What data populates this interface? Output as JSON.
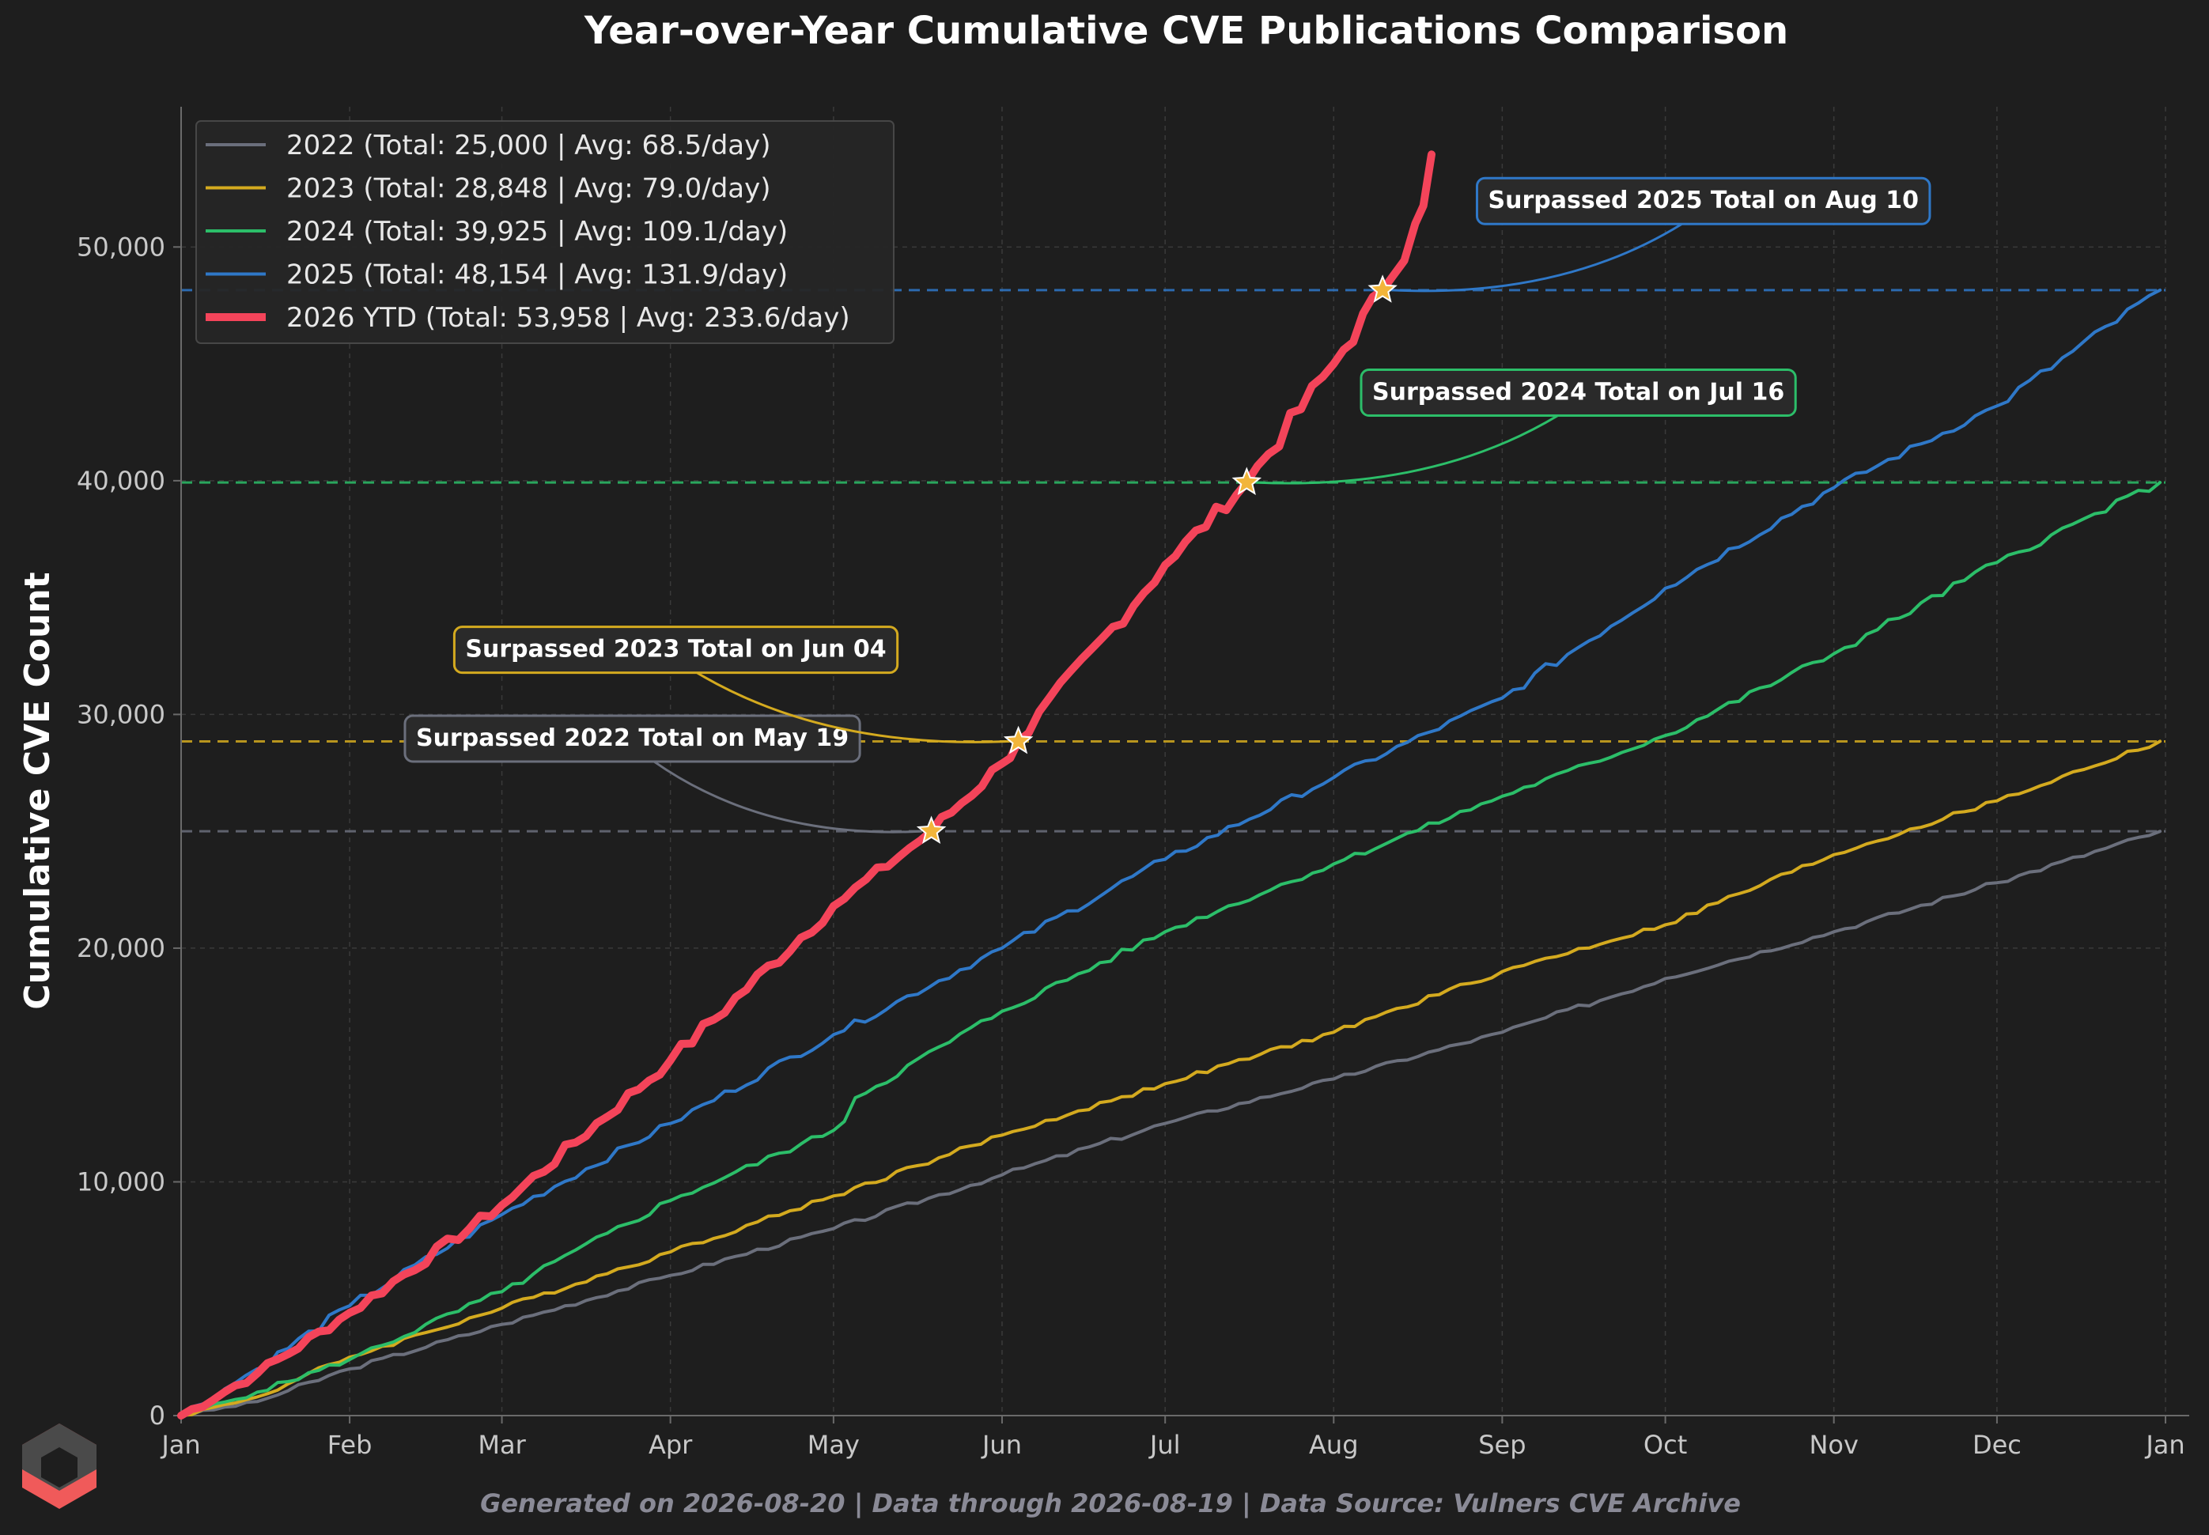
{
  "colors": {
    "background": "#1e1e1e",
    "grid": "#3a3a3a",
    "axis": "#6a6a6a",
    "y2022": "#6b6f7c",
    "y2023": "#d4aa1f",
    "y2024": "#2cbe69",
    "y2025": "#2f78c8",
    "y2026": "#f4445a",
    "star": "#f2b53a"
  },
  "chart_data": {
    "type": "line",
    "title": "Year-over-Year Cumulative CVE Publications Comparison",
    "xlabel": "",
    "ylabel": "Cumulative CVE Count",
    "x_ticks": [
      "Jan",
      "Feb",
      "Mar",
      "Apr",
      "May",
      "Jun",
      "Jul",
      "Aug",
      "Sep",
      "Oct",
      "Nov",
      "Dec",
      "Jan"
    ],
    "y_ticks": [
      "0",
      "10,000",
      "20,000",
      "30,000",
      "40,000",
      "50,000"
    ],
    "y_tick_values": [
      0,
      10000,
      20000,
      30000,
      40000,
      50000
    ],
    "xlim_day_of_year": [
      1,
      366
    ],
    "ylim": [
      0,
      56000
    ],
    "grid": true,
    "legend_placement": "top-left",
    "series": [
      {
        "name": "2022 (Total: 25,000 | Avg: 68.5/day)",
        "color_key": "y2022",
        "width": 4,
        "points": [
          [
            1,
            0
          ],
          [
            15,
            600
          ],
          [
            32,
            2000
          ],
          [
            60,
            3900
          ],
          [
            91,
            6000
          ],
          [
            121,
            8000
          ],
          [
            152,
            10300
          ],
          [
            182,
            12500
          ],
          [
            213,
            14400
          ],
          [
            244,
            16400
          ],
          [
            274,
            18700
          ],
          [
            305,
            20700
          ],
          [
            335,
            22800
          ],
          [
            365,
            25000
          ]
        ]
      },
      {
        "name": "2023 (Total: 28,848 | Avg: 79.0/day)",
        "color_key": "y2023",
        "width": 4,
        "points": [
          [
            1,
            0
          ],
          [
            15,
            800
          ],
          [
            32,
            2500
          ],
          [
            60,
            4600
          ],
          [
            91,
            7000
          ],
          [
            121,
            9400
          ],
          [
            152,
            12000
          ],
          [
            182,
            14200
          ],
          [
            213,
            16400
          ],
          [
            244,
            19000
          ],
          [
            274,
            21000
          ],
          [
            305,
            24000
          ],
          [
            335,
            26300
          ],
          [
            365,
            28848
          ]
        ]
      },
      {
        "name": "2024 (Total: 39,925 | Avg: 109.1/day)",
        "color_key": "y2024",
        "width": 4,
        "points": [
          [
            1,
            0
          ],
          [
            15,
            1000
          ],
          [
            32,
            2400
          ],
          [
            60,
            5300
          ],
          [
            91,
            9200
          ],
          [
            121,
            12200
          ],
          [
            125,
            13600
          ],
          [
            152,
            17300
          ],
          [
            182,
            20700
          ],
          [
            213,
            23600
          ],
          [
            244,
            26500
          ],
          [
            274,
            29100
          ],
          [
            305,
            32600
          ],
          [
            335,
            36500
          ],
          [
            365,
            39925
          ]
        ]
      },
      {
        "name": "2025 (Total: 48,154 | Avg: 131.9/day)",
        "color_key": "y2025",
        "width": 4,
        "points": [
          [
            1,
            0
          ],
          [
            15,
            2000
          ],
          [
            32,
            4700
          ],
          [
            60,
            8600
          ],
          [
            91,
            12500
          ],
          [
            121,
            16300
          ],
          [
            152,
            20000
          ],
          [
            182,
            23800
          ],
          [
            213,
            27300
          ],
          [
            244,
            30700
          ],
          [
            274,
            35400
          ],
          [
            305,
            39700
          ],
          [
            335,
            43200
          ],
          [
            365,
            48154
          ]
        ]
      },
      {
        "name": "2026 YTD (Total: 53,958 | Avg: 233.6/day)",
        "color_key": "y2026",
        "width": 10,
        "points": [
          [
            1,
            0
          ],
          [
            15,
            1800
          ],
          [
            32,
            4400
          ],
          [
            60,
            9000
          ],
          [
            91,
            15200
          ],
          [
            121,
            21800
          ],
          [
            139,
            25000
          ],
          [
            152,
            27900
          ],
          [
            155,
            28848
          ],
          [
            182,
            36400
          ],
          [
            197,
            39925
          ],
          [
            213,
            45000
          ],
          [
            222,
            48154
          ],
          [
            228,
            51000
          ],
          [
            231,
            53958
          ]
        ]
      }
    ],
    "reference_lines": [
      {
        "value": 25000,
        "color_key": "y2022"
      },
      {
        "value": 28848,
        "color_key": "y2023"
      },
      {
        "value": 39925,
        "color_key": "y2024"
      },
      {
        "value": 48154,
        "color_key": "y2025"
      }
    ],
    "annotations": [
      {
        "text": "Surpassed 2022 Total on May 19",
        "day": 139,
        "value": 25000,
        "color_key": "y2022",
        "box_day": 84,
        "box_value": 29000
      },
      {
        "text": "Surpassed 2023 Total on Jun 04",
        "day": 155,
        "value": 28848,
        "color_key": "y2023",
        "box_day": 92,
        "box_value": 32800
      },
      {
        "text": "Surpassed 2024 Total on Jul 16",
        "day": 197,
        "value": 39925,
        "color_key": "y2024",
        "box_day": 258,
        "box_value": 43800
      },
      {
        "text": "Surpassed 2025 Total on Aug 10",
        "day": 222,
        "value": 48154,
        "color_key": "y2025",
        "box_day": 281,
        "box_value": 52000
      }
    ],
    "footer": "Generated on 2026-08-20 | Data through 2026-08-19 | Data Source: Vulners CVE Archive"
  }
}
